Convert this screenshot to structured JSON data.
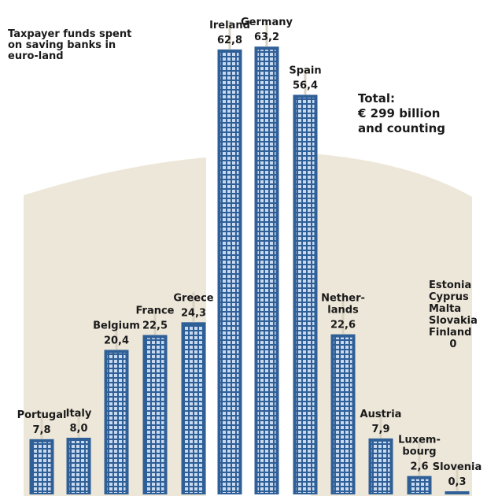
{
  "title": "Taxpayer funds spent on saving banks in euro-land",
  "total": {
    "line1": "Total:",
    "line2": "€ 299 billion",
    "line3": "and counting"
  },
  "zero_group": {
    "countries": [
      "Estonia",
      "Cyprus",
      "Malta",
      "Slovakia",
      "Finland"
    ],
    "value_label": "0"
  },
  "colors": {
    "bar": "#2f5f97",
    "bar_window": "#c9daf0",
    "background_shape": "#ede7d9",
    "leader": "#d9d3c4"
  },
  "chart_data": {
    "type": "bar",
    "title": "Taxpayer funds spent on saving banks in euro-land",
    "total_label": "€ 299 billion and counting",
    "categories": [
      "Portugal",
      "Italy",
      "Belgium",
      "France",
      "Greece",
      "Ireland",
      "Germany",
      "Spain",
      "Netherlands",
      "Austria",
      "Luxembourg",
      "Slovenia"
    ],
    "category_labels": [
      [
        "Portugal"
      ],
      [
        "Italy"
      ],
      [
        "Belgium"
      ],
      [
        "France"
      ],
      [
        "Greece"
      ],
      [
        "Ireland"
      ],
      [
        "Germany"
      ],
      [
        "Spain"
      ],
      [
        "Nether-",
        "lands"
      ],
      [
        "Austria"
      ],
      [
        "Luxem-",
        "bourg"
      ],
      [
        "Slovenia"
      ]
    ],
    "value_labels": [
      "7,8",
      "8,0",
      "20,4",
      "22,5",
      "24,3",
      "62,8",
      "63,2",
      "56,4",
      "22,6",
      "7,9",
      "2,6",
      "0,3"
    ],
    "values": [
      7.8,
      8.0,
      20.4,
      22.5,
      24.3,
      62.8,
      63.2,
      56.4,
      22.6,
      7.9,
      2.6,
      0.3
    ],
    "zero_value_countries": [
      "Estonia",
      "Cyprus",
      "Malta",
      "Slovakia",
      "Finland"
    ],
    "ylim": [
      0,
      65
    ]
  }
}
